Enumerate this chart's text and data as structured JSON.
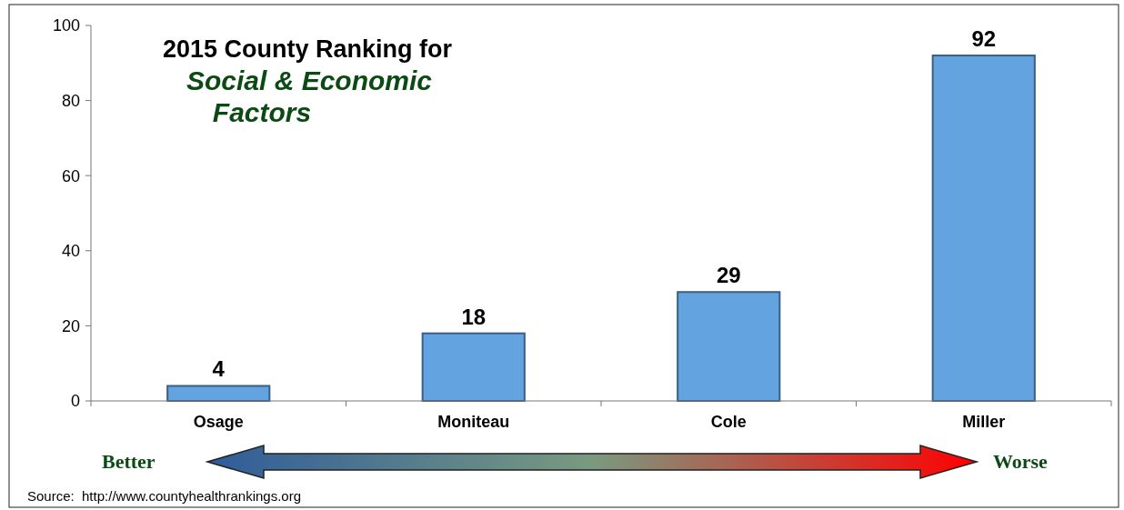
{
  "chart_data": {
    "type": "bar",
    "title": "2015 County Ranking for",
    "subtitle": "Social & Economic Factors",
    "categories": [
      "Osage",
      "Moniteau",
      "Cole",
      "Miller"
    ],
    "values": [
      4,
      18,
      29,
      92
    ],
    "color": "#62a3e0",
    "data_labels": true,
    "ylim": [
      0,
      100
    ],
    "yticks": [
      0,
      20,
      40,
      60,
      80,
      100
    ],
    "grid": false,
    "annotations": [
      "Better",
      "Worse",
      "Source:  http://www.countyhealthrankings.org"
    ]
  }
}
